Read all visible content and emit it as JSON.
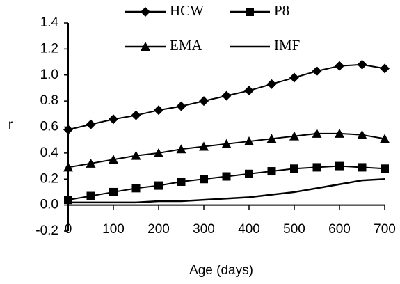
{
  "chart_data": {
    "type": "line",
    "x_label": "Age (days)",
    "y_label": "r",
    "x": [
      0,
      50,
      100,
      150,
      200,
      250,
      300,
      350,
      400,
      450,
      500,
      550,
      600,
      650,
      700
    ],
    "series": [
      {
        "name": "HCW",
        "color": "#000000",
        "marker": "diamond",
        "values": [
          0.58,
          0.62,
          0.66,
          0.69,
          0.73,
          0.76,
          0.8,
          0.84,
          0.88,
          0.93,
          0.98,
          1.03,
          1.07,
          1.08,
          1.05
        ]
      },
      {
        "name": "P8",
        "color": "#000000",
        "marker": "square",
        "values": [
          0.04,
          0.07,
          0.1,
          0.13,
          0.15,
          0.18,
          0.2,
          0.22,
          0.24,
          0.26,
          0.28,
          0.29,
          0.3,
          0.29,
          0.28
        ]
      },
      {
        "name": "EMA",
        "color": "#000000",
        "marker": "triangle",
        "values": [
          0.29,
          0.32,
          0.35,
          0.38,
          0.4,
          0.43,
          0.45,
          0.47,
          0.49,
          0.51,
          0.53,
          0.55,
          0.55,
          0.54,
          0.51
        ]
      },
      {
        "name": "IMF",
        "color": "#000000",
        "marker": "none",
        "values": [
          0.02,
          0.02,
          0.02,
          0.02,
          0.03,
          0.03,
          0.04,
          0.05,
          0.06,
          0.08,
          0.1,
          0.13,
          0.16,
          0.19,
          0.2
        ]
      }
    ],
    "xlim": [
      0,
      700
    ],
    "xticks": [
      0,
      100,
      200,
      300,
      400,
      500,
      600,
      700
    ],
    "ylim": [
      -0.2,
      1.4
    ],
    "yticks": [
      -0.2,
      {
        "value": 0,
        "label": "0.0"
      },
      0.2,
      0.4,
      0.6,
      0.8,
      {
        "value": 1,
        "label": "1.0"
      },
      1.2,
      1.4
    ],
    "legend": "top",
    "grid": false
  }
}
